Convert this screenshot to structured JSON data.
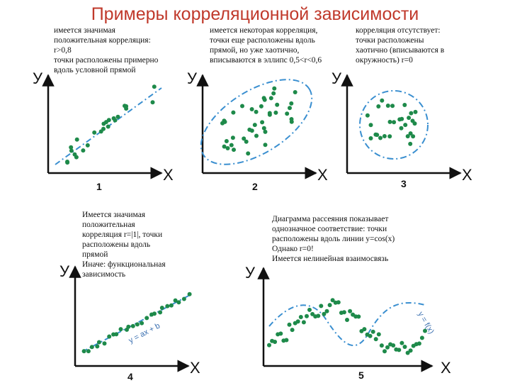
{
  "title": "Примеры корреляционной зависимости",
  "colors": {
    "title": "#c0392b",
    "points": "#1e8a4a",
    "line": "#3a8fd0",
    "axis": "#111111"
  },
  "axis_labels": {
    "y": "У",
    "x": "Х"
  },
  "graphs": [
    {
      "number": "1",
      "text": "имеется значимая\nположительная корреляция:\nr>0,8\nточки расположены примерно\nвдоль условной прямой",
      "line_label": ""
    },
    {
      "number": "2",
      "text": "имеется некоторая корреляция,\nточки еще расположены вдоль\nпрямой, но уже хаотично,\nвписываются в эллипс 0,5<r<0,6",
      "line_label": ""
    },
    {
      "number": "3",
      "text": "корреляция отсутствует:\nточки расположены\nхаотично (вписываются в\nокружность) r=0",
      "line_label": ""
    },
    {
      "number": "4",
      "text": "Имеется значимая\nположительная\nкорреляция r=|1|, точки\nрасположены вдоль\nпрямой\n Иначе: функциональная\nзависимость",
      "line_label": "y = ax + b"
    },
    {
      "number": "5",
      "text": "Диаграмма рассеяния показывает\nоднозначное соответствие: точки\nрасположены вдоль линии y=cos(x)\n Однако r=0!\nИмеется нелинейная взаимосвязь",
      "line_label": "y = f(x)"
    }
  ]
}
